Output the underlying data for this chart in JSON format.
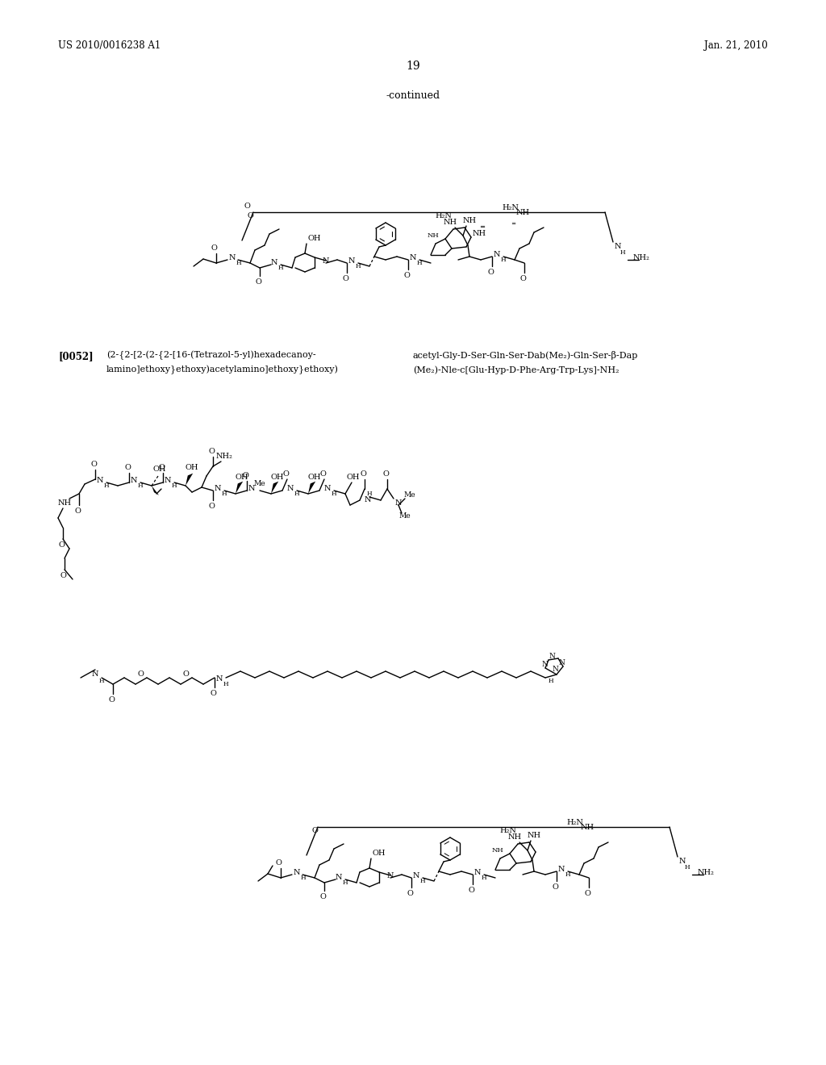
{
  "background_color": "#ffffff",
  "page_number": "19",
  "header_left": "US 2010/0016238 A1",
  "header_right": "Jan. 21, 2010",
  "continued_text": "-continued",
  "ref_num": "[0052]",
  "left_text_line1": "(2-{2-[2-(2-{2-[16-(Tetrazol-5-yl)hexadecanoy-",
  "left_text_line2": "lamino]ethoxy}ethoxy)acetylamino]ethoxy}ethoxy)",
  "right_text_line1": "acetyl-Gly-D-Ser-Gln-Ser-Dab(Me₂)-Gln-Ser-β-Dap",
  "right_text_line2": "(Me₂)-Nle-c[Glu-Hyp-D-Phe-Arg-Trp-Lys]-NH₂",
  "fig_width": 1024,
  "fig_height": 1320,
  "dpi": 100
}
